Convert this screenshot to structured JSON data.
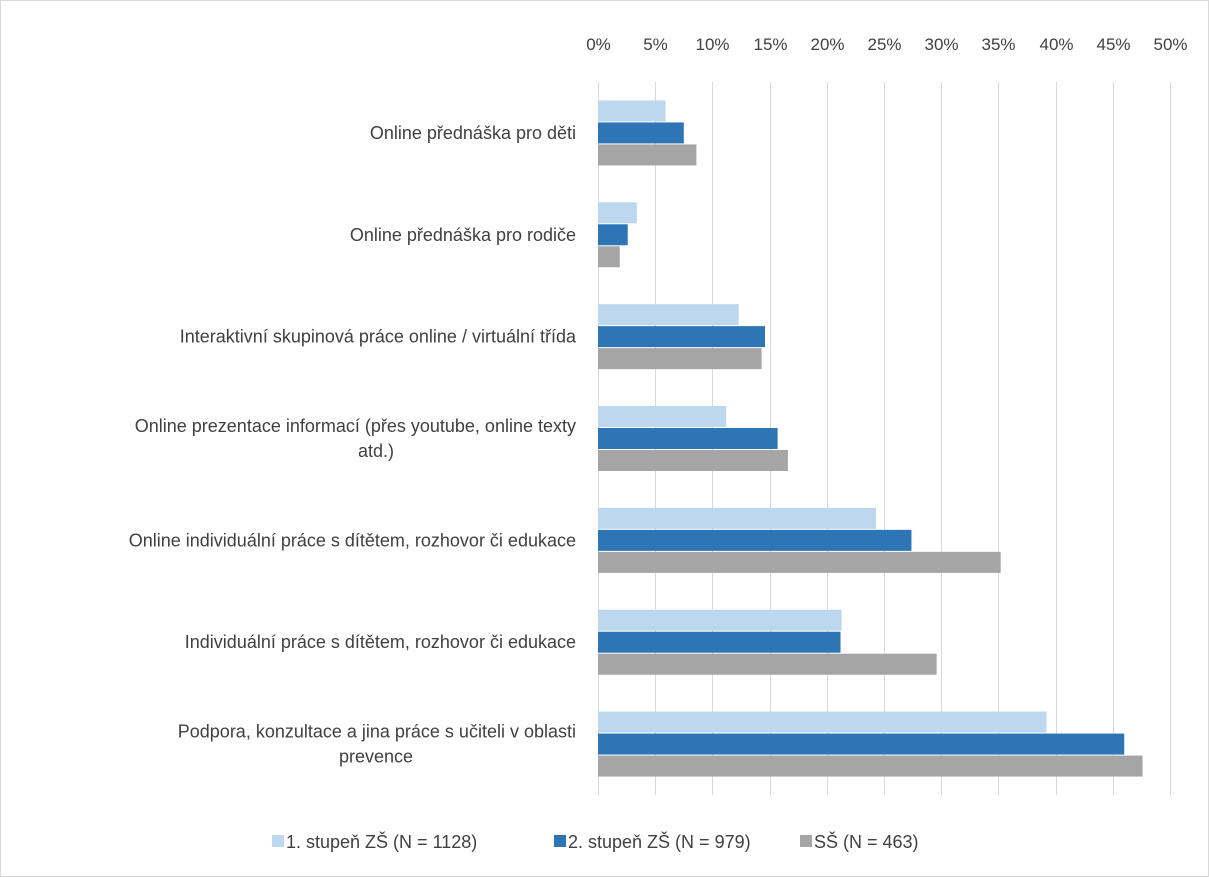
{
  "chart_data": {
    "type": "bar",
    "orientation": "horizontal",
    "title": "",
    "xlabel": "",
    "ylabel": "",
    "xlim": [
      0,
      50
    ],
    "x_ticks": [
      "0%",
      "5%",
      "10%",
      "15%",
      "20%",
      "25%",
      "30%",
      "35%",
      "40%",
      "45%",
      "50%"
    ],
    "x_axis_position": "top",
    "grid": true,
    "legend_position": "bottom",
    "categories": [
      [
        "Online přednáška pro děti"
      ],
      [
        "Online přednáška pro rodiče"
      ],
      [
        "Interaktivní skupinová práce online / virtuální třída"
      ],
      [
        "Online prezentace informací (přes youtube, online texty",
        "atd.)"
      ],
      [
        "Online individuální práce s dítětem, rozhovor či edukace"
      ],
      [
        "Individuální práce s dítětem, rozhovor či edukace"
      ],
      [
        "Podpora, konzultace a jina práce s učiteli v oblasti",
        "prevence"
      ]
    ],
    "series": [
      {
        "name": "1. stupeň ZŠ (N = 1128)",
        "color": "#bdd7ee",
        "values": [
          5.9,
          3.4,
          12.3,
          11.2,
          24.3,
          21.3,
          39.2
        ]
      },
      {
        "name": "2. stupeň ZŠ (N = 979)",
        "color": "#2e75b6",
        "values": [
          7.5,
          2.6,
          14.6,
          15.7,
          27.4,
          21.2,
          46.0
        ]
      },
      {
        "name": "SŠ (N = 463)",
        "color": "#a5a5a5",
        "values": [
          8.6,
          1.9,
          14.3,
          16.6,
          35.2,
          29.6,
          47.6
        ]
      }
    ]
  }
}
